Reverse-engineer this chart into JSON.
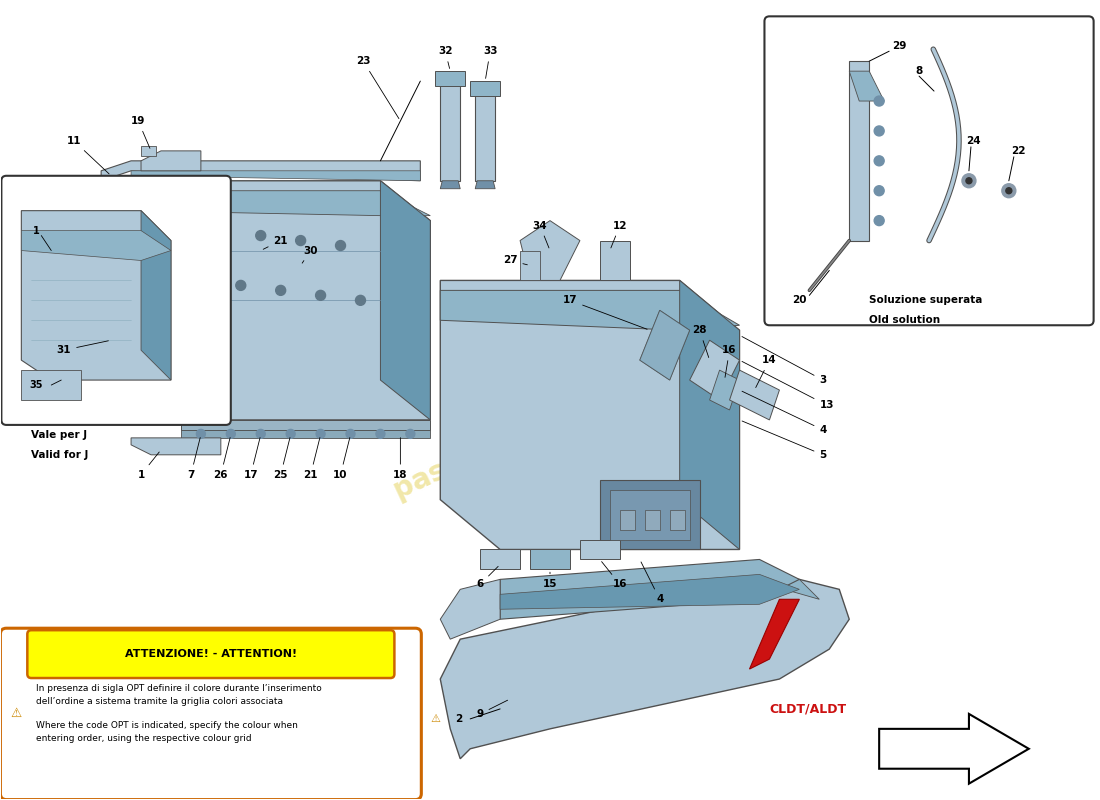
{
  "bg_color": "#ffffff",
  "pc": "#b0c8d8",
  "pcm": "#8fb5c8",
  "pcd": "#6898b0",
  "pc2": "#c0d4e0",
  "watermark_color": "#e8d870",
  "red_accent": "#cc1111",
  "cldt_color": "#cc1111",
  "attention_title": "ATTENZIONE! - ATTENTION!",
  "attention_it": "In presenza di sigla OPT definire il colore durante l’inserimento\ndell’ordine a sistema tramite la griglia colori associata",
  "attention_en": "Where the code OPT is indicated, specify the colour when\nentering order, using the respective colour grid",
  "old_solution_label1": "Soluzione superata",
  "old_solution_label2": "Old solution",
  "valid_for_j1": "Vale per J",
  "valid_for_j2": "Valid for J",
  "cldt_label": "CLDT/ALDT"
}
